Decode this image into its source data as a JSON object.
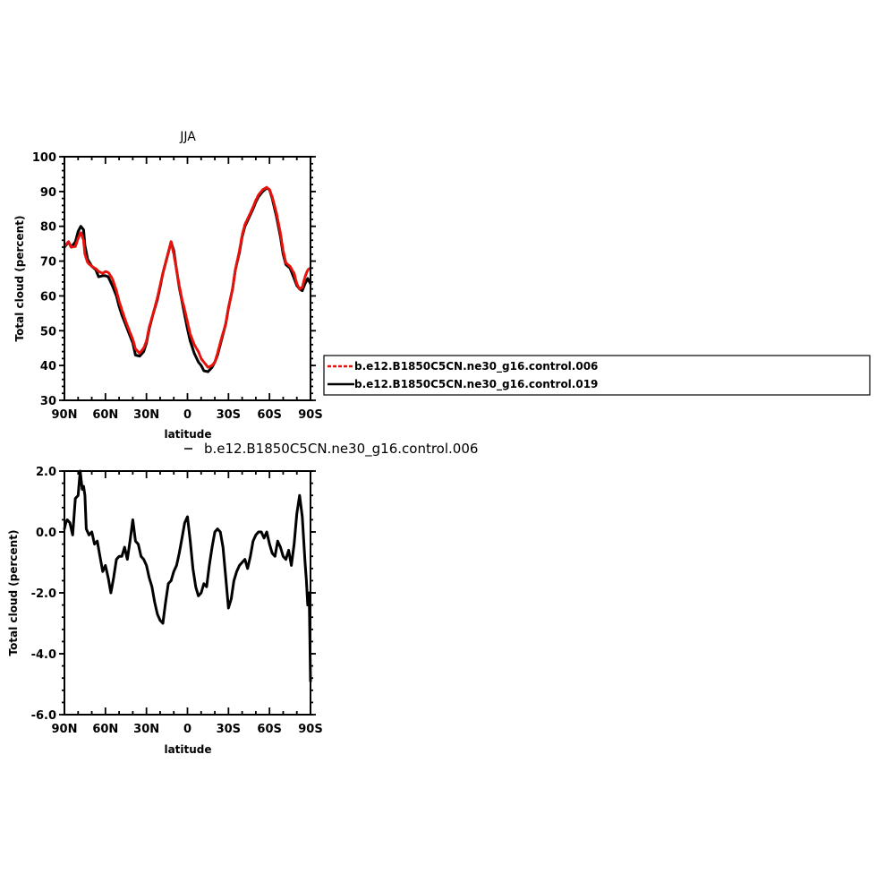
{
  "chart_data": [
    {
      "type": "line",
      "title": "JJA",
      "xlabel": "latitude",
      "ylabel": "Total cloud (percent)",
      "xlim": [
        90,
        -90
      ],
      "ylim": [
        30,
        100
      ],
      "x_ticks": [
        {
          "value": 90,
          "label": "90N"
        },
        {
          "value": 60,
          "label": "60N"
        },
        {
          "value": 30,
          "label": "30N"
        },
        {
          "value": 0,
          "label": "0"
        },
        {
          "value": -30,
          "label": "30S"
        },
        {
          "value": -60,
          "label": "60S"
        },
        {
          "value": -90,
          "label": "90S"
        }
      ],
      "y_ticks": [
        {
          "value": 30,
          "label": "30"
        },
        {
          "value": 40,
          "label": "40"
        },
        {
          "value": 50,
          "label": "50"
        },
        {
          "value": 60,
          "label": "60"
        },
        {
          "value": 70,
          "label": "70"
        },
        {
          "value": 80,
          "label": "80"
        },
        {
          "value": 90,
          "label": "90"
        },
        {
          "value": 100,
          "label": "100"
        }
      ],
      "legend_position": "right",
      "series": [
        {
          "name": "b.e12.B1850C5CN.ne30_g16.control.006",
          "color": "#e8120c",
          "dashed": true,
          "x": [
            90,
            87,
            85,
            82,
            80,
            78,
            76,
            75,
            73,
            70,
            67,
            65,
            62,
            60,
            58,
            55,
            52,
            50,
            48,
            45,
            42,
            40,
            38,
            35,
            32,
            30,
            28,
            25,
            22,
            20,
            18,
            15,
            12,
            10,
            8,
            6,
            4,
            2,
            0,
            -2,
            -5,
            -8,
            -10,
            -12,
            -15,
            -18,
            -20,
            -22,
            -25,
            -28,
            -30,
            -33,
            -35,
            -38,
            -40,
            -42,
            -45,
            -48,
            -50,
            -52,
            -55,
            -58,
            -60,
            -62,
            -65,
            -68,
            -70,
            -72,
            -75,
            -78,
            -80,
            -82,
            -84,
            -86,
            -88,
            -90
          ],
          "y": [
            74.3,
            75.6,
            74.0,
            74.2,
            76.5,
            78.3,
            76.0,
            72.0,
            69.5,
            68.5,
            67.8,
            67.0,
            66.5,
            67.0,
            66.8,
            65.0,
            61.5,
            58.5,
            56.0,
            52.5,
            49.5,
            47.5,
            44.8,
            43.5,
            45.0,
            47.0,
            51.0,
            55.0,
            59.5,
            63.0,
            66.5,
            71.0,
            75.6,
            72.0,
            67.5,
            63.0,
            59.0,
            56.0,
            52.5,
            49.0,
            46.0,
            44.0,
            42.0,
            41.0,
            39.5,
            40.0,
            41.0,
            43.5,
            48.0,
            52.0,
            56.5,
            62.0,
            67.5,
            73.0,
            77.5,
            80.5,
            83.0,
            85.5,
            87.5,
            89.0,
            90.5,
            91.2,
            90.5,
            88.5,
            84.0,
            78.0,
            73.0,
            69.5,
            68.5,
            66.5,
            63.5,
            62.0,
            62.5,
            65.5,
            67.5,
            68.0
          ]
        },
        {
          "name": "b.e12.B1850C5CN.ne30_g16.control.019",
          "color": "#000000",
          "dashed": false,
          "x": [
            90,
            87,
            85,
            82,
            80,
            78,
            76,
            75,
            73,
            70,
            67,
            65,
            62,
            60,
            58,
            55,
            52,
            50,
            48,
            45,
            42,
            40,
            38,
            35,
            32,
            30,
            28,
            25,
            22,
            20,
            18,
            15,
            12,
            10,
            8,
            6,
            4,
            2,
            0,
            -2,
            -5,
            -8,
            -10,
            -12,
            -15,
            -18,
            -20,
            -22,
            -25,
            -28,
            -30,
            -33,
            -35,
            -38,
            -40,
            -42,
            -45,
            -48,
            -50,
            -52,
            -55,
            -58,
            -60,
            -62,
            -65,
            -68,
            -70,
            -72,
            -75,
            -78,
            -80,
            -82,
            -84,
            -86,
            -88,
            -90
          ],
          "y": [
            74.0,
            75.5,
            74.0,
            75.5,
            78.5,
            80.0,
            79.0,
            74.5,
            70.5,
            68.5,
            67.5,
            65.5,
            65.8,
            65.8,
            65.5,
            63.0,
            60.0,
            57.0,
            54.5,
            51.5,
            48.5,
            46.5,
            43.0,
            42.7,
            44.0,
            46.5,
            50.5,
            55.0,
            59.0,
            62.5,
            66.5,
            71.0,
            75.5,
            73.0,
            67.5,
            62.5,
            58.5,
            54.5,
            50.5,
            47.0,
            43.5,
            41.0,
            40.0,
            38.5,
            38.2,
            39.5,
            41.0,
            43.0,
            47.5,
            52.0,
            56.5,
            62.0,
            67.5,
            72.5,
            77.0,
            80.0,
            82.5,
            85.0,
            87.0,
            88.5,
            90.0,
            91.0,
            90.5,
            88.0,
            83.0,
            77.0,
            72.0,
            69.0,
            68.0,
            65.0,
            63.0,
            62.0,
            61.5,
            63.5,
            65.0,
            63.5
          ]
        }
      ]
    },
    {
      "type": "line",
      "title": "",
      "subtitle": "b.e12.B1850C5CN.ne30_g16.control.006",
      "xlabel": "latitude",
      "ylabel": "Total cloud (percent)",
      "xlim": [
        90,
        -90
      ],
      "ylim": [
        -6.0,
        2.0
      ],
      "x_ticks": [
        {
          "value": 90,
          "label": "90N"
        },
        {
          "value": 60,
          "label": "60N"
        },
        {
          "value": 30,
          "label": "30N"
        },
        {
          "value": 0,
          "label": "0"
        },
        {
          "value": -30,
          "label": "30S"
        },
        {
          "value": -60,
          "label": "60S"
        },
        {
          "value": -90,
          "label": "90S"
        }
      ],
      "y_ticks": [
        {
          "value": 2.0,
          "label": "2.0"
        },
        {
          "value": 0.0,
          "label": "0.0"
        },
        {
          "value": -2.0,
          "label": "-2.0"
        },
        {
          "value": -4.0,
          "label": "-4.0"
        },
        {
          "value": -6.0,
          "label": "-6.0"
        }
      ],
      "series": [
        {
          "color": "#000000",
          "dashed": false,
          "x": [
            90,
            89,
            88,
            86,
            84,
            82,
            80,
            78.5,
            77,
            76,
            75,
            74,
            72,
            70,
            68,
            66,
            64,
            62,
            60,
            58,
            56,
            54,
            52,
            50,
            48,
            46,
            44,
            42,
            40,
            38,
            36,
            34,
            32,
            30,
            28,
            26,
            24,
            22,
            20,
            18,
            16,
            14,
            12,
            10,
            8,
            6,
            4,
            2,
            0,
            -2,
            -4,
            -6,
            -8,
            -10,
            -12,
            -14,
            -16,
            -18,
            -20,
            -22,
            -24,
            -26,
            -28,
            -30,
            -32,
            -34,
            -36,
            -38,
            -40,
            -42,
            -44,
            -46,
            -48,
            -50,
            -52,
            -54,
            -56,
            -58,
            -60,
            -62,
            -64,
            -66,
            -68,
            -70,
            -72,
            -74,
            -76,
            -78,
            -80,
            -82,
            -84,
            -86,
            -87,
            -88,
            -89,
            -90
          ],
          "y": [
            0.1,
            0.3,
            0.4,
            0.3,
            -0.1,
            1.1,
            1.2,
            2.0,
            1.4,
            1.5,
            1.2,
            0.1,
            -0.1,
            0.0,
            -0.4,
            -0.3,
            -0.8,
            -1.3,
            -1.1,
            -1.5,
            -2.0,
            -1.5,
            -0.9,
            -0.8,
            -0.8,
            -0.5,
            -0.9,
            -0.3,
            0.4,
            -0.3,
            -0.4,
            -0.8,
            -0.9,
            -1.1,
            -1.5,
            -1.8,
            -2.3,
            -2.7,
            -2.9,
            -3.0,
            -2.3,
            -1.7,
            -1.6,
            -1.3,
            -1.1,
            -0.7,
            -0.2,
            0.3,
            0.5,
            -0.3,
            -1.2,
            -1.8,
            -2.1,
            -2.0,
            -1.7,
            -1.8,
            -1.1,
            -0.5,
            0.0,
            0.1,
            0.0,
            -0.5,
            -1.5,
            -2.5,
            -2.2,
            -1.6,
            -1.3,
            -1.1,
            -1.0,
            -0.9,
            -1.2,
            -0.8,
            -0.3,
            -0.1,
            0.0,
            0.0,
            -0.2,
            0.0,
            -0.4,
            -0.7,
            -0.8,
            -0.3,
            -0.5,
            -0.8,
            -0.9,
            -0.6,
            -1.1,
            -0.4,
            0.6,
            1.2,
            0.5,
            -1.0,
            -1.6,
            -2.4,
            -2.0,
            -4.9
          ]
        }
      ]
    }
  ]
}
